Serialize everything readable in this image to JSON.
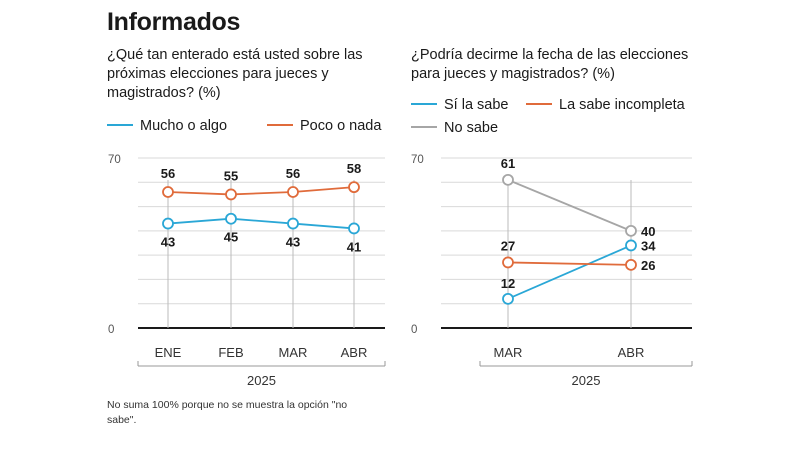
{
  "title": "Informados",
  "footnote": "No suma 100% porque no se muestra la opción \"no sabe\".",
  "colors": {
    "blue": "#2aa7d6",
    "orange": "#e06b3b",
    "gray": "#a6a6a6"
  },
  "chart_data": [
    {
      "type": "line",
      "question": "¿Qué tan enterado está usted sobre las próximas elecciones para jueces y magistrados? (%)",
      "categories": [
        "ENE",
        "FEB",
        "MAR",
        "ABR"
      ],
      "xlabel": "2025",
      "ylim": [
        0,
        70
      ],
      "ytick_labels": [
        "0",
        "70"
      ],
      "grid": true,
      "legend_position": "top",
      "series": [
        {
          "name": "Mucho o algo",
          "color": "#2aa7d6",
          "values": [
            43,
            45,
            43,
            41
          ],
          "labels": [
            "43",
            "45",
            "43",
            "41"
          ],
          "label_position": "below"
        },
        {
          "name": "Poco o nada",
          "color": "#e06b3b",
          "values": [
            56,
            55,
            56,
            58
          ],
          "labels": [
            "56",
            "55",
            "56",
            "58"
          ],
          "label_position": "above"
        }
      ]
    },
    {
      "type": "line",
      "question": "¿Podría decirme la fecha de las elecciones para jueces  y magistrados? (%)",
      "categories": [
        "MAR",
        "ABR"
      ],
      "xlabel": "2025",
      "ylim": [
        0,
        70
      ],
      "ytick_labels": [
        "0",
        "70"
      ],
      "grid": true,
      "legend_position": "top",
      "series": [
        {
          "name": "Sí la sabe",
          "color": "#2aa7d6",
          "values": [
            12,
            34
          ],
          "labels": [
            "12",
            "34"
          ]
        },
        {
          "name": "La sabe incompleta",
          "color": "#e06b3b",
          "values": [
            27,
            26
          ],
          "labels": [
            "27",
            "26"
          ]
        },
        {
          "name": "No sabe",
          "color": "#a6a6a6",
          "values": [
            61,
            40
          ],
          "labels": [
            "61",
            "40"
          ]
        }
      ]
    }
  ]
}
